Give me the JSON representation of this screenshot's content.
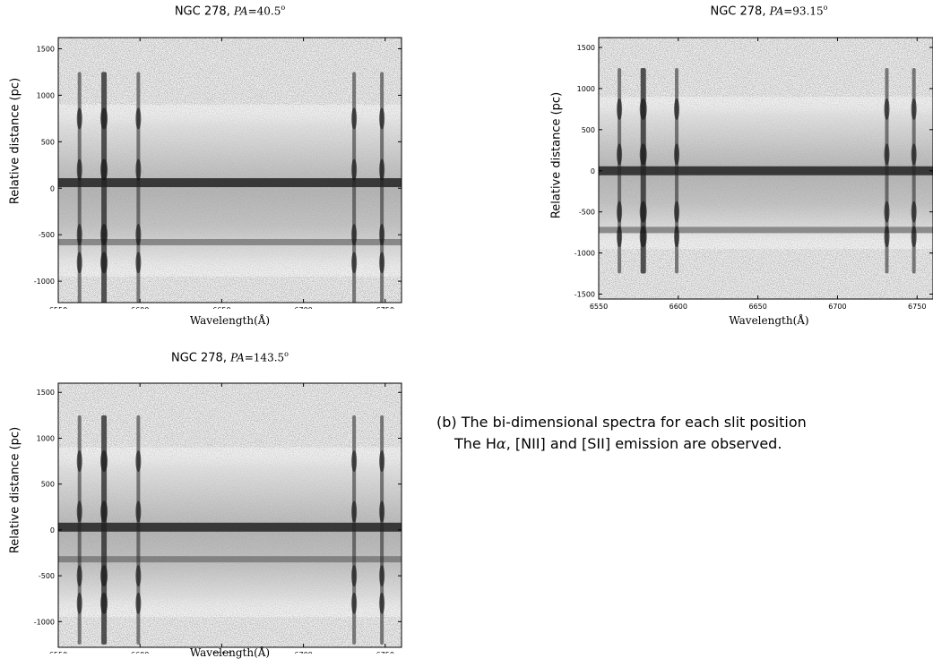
{
  "panels": [
    {
      "title_prefix": "NGC 278, ",
      "title_pa_label": "PA",
      "title_pa_eq": "=",
      "title_pa_value": "40.5",
      "title_pa_unit": "o",
      "xlabel": "Wavelength(Å)",
      "ylabel": "Relative distance (pc)"
    },
    {
      "title_prefix": "NGC 278, ",
      "title_pa_label": "PA",
      "title_pa_eq": "=",
      "title_pa_value": "93.15",
      "title_pa_unit": "o",
      "xlabel": "Wavelength(Å)",
      "ylabel": "Relative distance (pc)"
    },
    {
      "title_prefix": "NGC 278, ",
      "title_pa_label": "PA",
      "title_pa_eq": "=",
      "title_pa_value": "143.5",
      "title_pa_unit": "o",
      "xlabel": "Wavelength(Å)",
      "ylabel": "Relative distance (pc)"
    }
  ],
  "caption": {
    "line1": "(b) The bi-dimensional spectra for each slit position",
    "line2_pre": "The H",
    "line2_alpha": "α",
    "line2_post": ", [NII] and [SII] emission are observed."
  },
  "chart_data": [
    {
      "type": "heatmap",
      "title": "NGC 278, PA=40.5°",
      "xlabel": "Wavelength(Å)",
      "ylabel": "Relative distance (pc)",
      "xlim": [
        6550,
        6760
      ],
      "ylim": [
        -1230,
        1620
      ],
      "xticks": [
        6550,
        6600,
        6650,
        6700,
        6750
      ],
      "yticks": [
        -1000,
        -500,
        0,
        500,
        1000,
        1500
      ],
      "emission_lines_A": [
        6563,
        6578,
        6599,
        6731,
        6748
      ],
      "bright_rows_pc": [
        60,
        -580
      ]
    },
    {
      "type": "heatmap",
      "title": "NGC 278, PA=93.15°",
      "xlabel": "Wavelength(Å)",
      "ylabel": "Relative distance (pc)",
      "xlim": [
        6550,
        6760
      ],
      "ylim": [
        -1560,
        1620
      ],
      "xticks": [
        6550,
        6600,
        6650,
        6700,
        6750
      ],
      "yticks": [
        -1500,
        -1000,
        -500,
        0,
        500,
        1000,
        1500
      ],
      "emission_lines_A": [
        6563,
        6578,
        6599,
        6731,
        6748
      ],
      "bright_rows_pc": [
        0,
        -720
      ]
    },
    {
      "type": "heatmap",
      "title": "NGC 278, PA=143.5°",
      "xlabel": "Wavelength(Å)",
      "ylabel": "Relative distance (pc)",
      "xlim": [
        6550,
        6760
      ],
      "ylim": [
        -1280,
        1600
      ],
      "xticks": [
        6550,
        6600,
        6650,
        6700,
        6750
      ],
      "yticks": [
        -1000,
        -500,
        0,
        500,
        1000,
        1500
      ],
      "emission_lines_A": [
        6563,
        6578,
        6599,
        6731,
        6748
      ],
      "bright_rows_pc": [
        30,
        -320
      ]
    }
  ]
}
